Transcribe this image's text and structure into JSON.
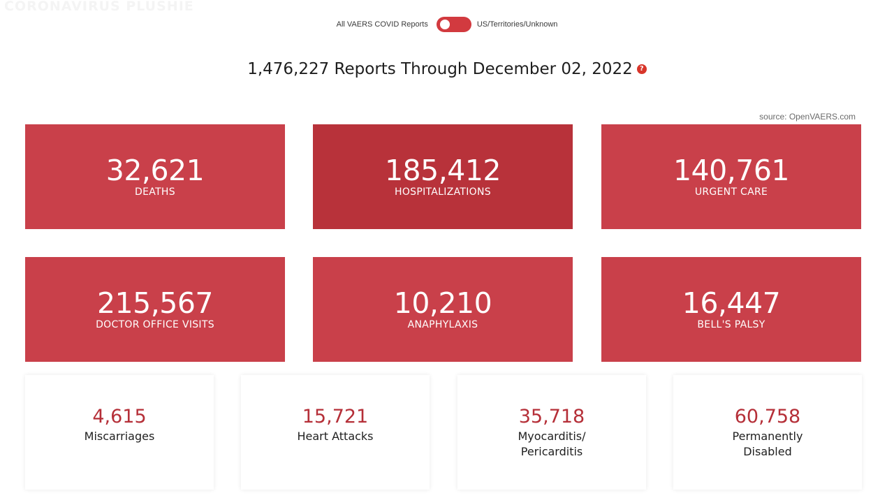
{
  "watermark": "CORONAVIRUS PLUSHIE",
  "toggle": {
    "left_label": "All VAERS COVID Reports",
    "right_label": "US/Territories/Unknown"
  },
  "headline": {
    "text": "1,476,227 Reports Through December 02, 2022",
    "help_glyph": "?"
  },
  "source": "source: OpenVAERS.com",
  "colors": {
    "card_red": "#c9404a",
    "card_red_dark": "#b8323a",
    "number_red": "#b52f38",
    "toggle_red": "#d23a3f",
    "help_red": "#d8352a"
  },
  "cards": [
    {
      "value": "32,621",
      "label": "DEATHS"
    },
    {
      "value": "185,412",
      "label": "HOSPITALIZATIONS"
    },
    {
      "value": "140,761",
      "label": "URGENT CARE"
    },
    {
      "value": "215,567",
      "label": "DOCTOR OFFICE VISITS"
    },
    {
      "value": "10,210",
      "label": "ANAPHYLAXIS"
    },
    {
      "value": "16,447",
      "label": "BELL'S PALSY"
    }
  ],
  "mini_cards": [
    {
      "value": "4,615",
      "label_lines": [
        "Miscarriages"
      ]
    },
    {
      "value": "15,721",
      "label_lines": [
        "Heart Attacks"
      ]
    },
    {
      "value": "35,718",
      "label_lines": [
        "Myocarditis/",
        "Pericarditis"
      ]
    },
    {
      "value": "60,758",
      "label_lines": [
        "Permanently",
        "Disabled"
      ]
    }
  ]
}
